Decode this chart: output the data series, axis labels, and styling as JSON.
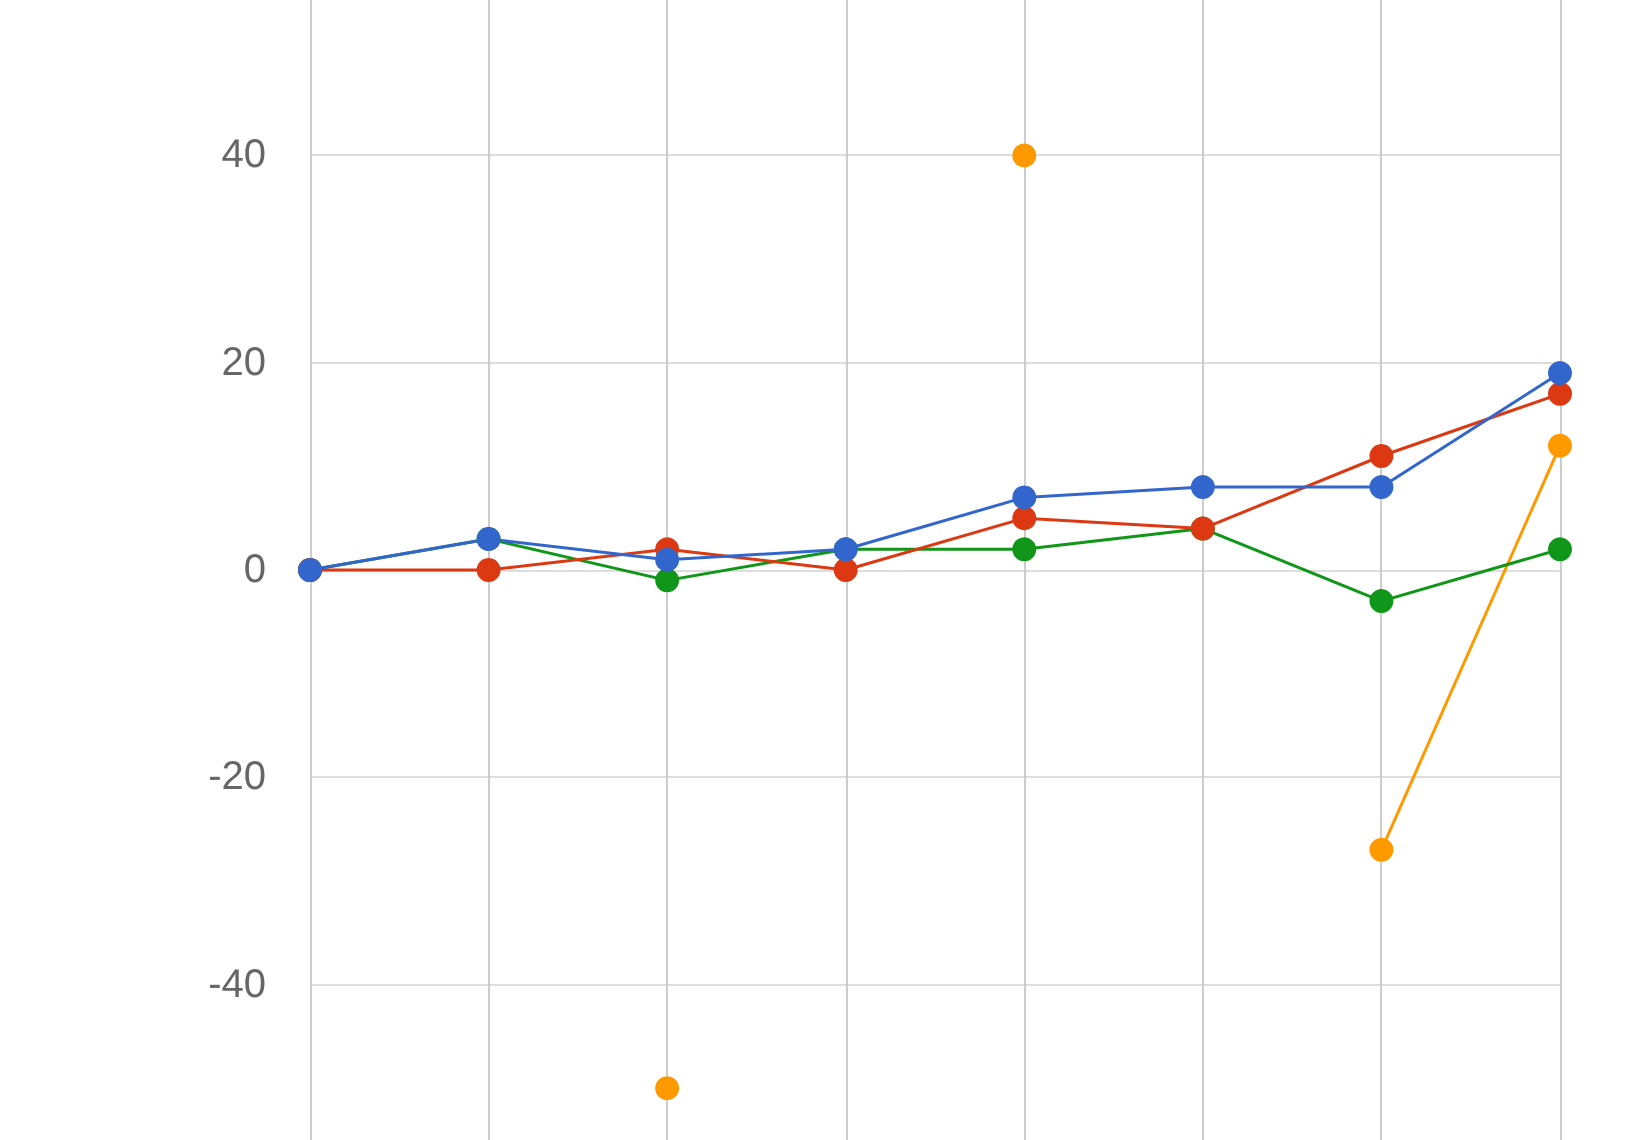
{
  "chart_data": {
    "type": "line",
    "categories": [
      null,
      null,
      null,
      null,
      null,
      null,
      null,
      null
    ],
    "series": [
      {
        "color": "#ff9900",
        "values": [
          0,
          null,
          -50,
          null,
          40,
          null,
          -27,
          12
        ]
      },
      {
        "color": "#109618",
        "values": [
          0,
          3,
          -1,
          2,
          2,
          4,
          -3,
          2
        ]
      },
      {
        "color": "#dc3912",
        "values": [
          0,
          0,
          2,
          0,
          5,
          4,
          11,
          17
        ]
      },
      {
        "color": "#3366cc",
        "values": [
          0,
          3,
          1,
          2,
          7,
          8,
          8,
          19
        ]
      }
    ],
    "ylim": [
      -55,
      55
    ],
    "yticks": [
      -40,
      -20,
      0,
      20,
      40
    ],
    "grid": true,
    "marker": "circle",
    "line_style": "solid",
    "tick_labels": "y"
  }
}
